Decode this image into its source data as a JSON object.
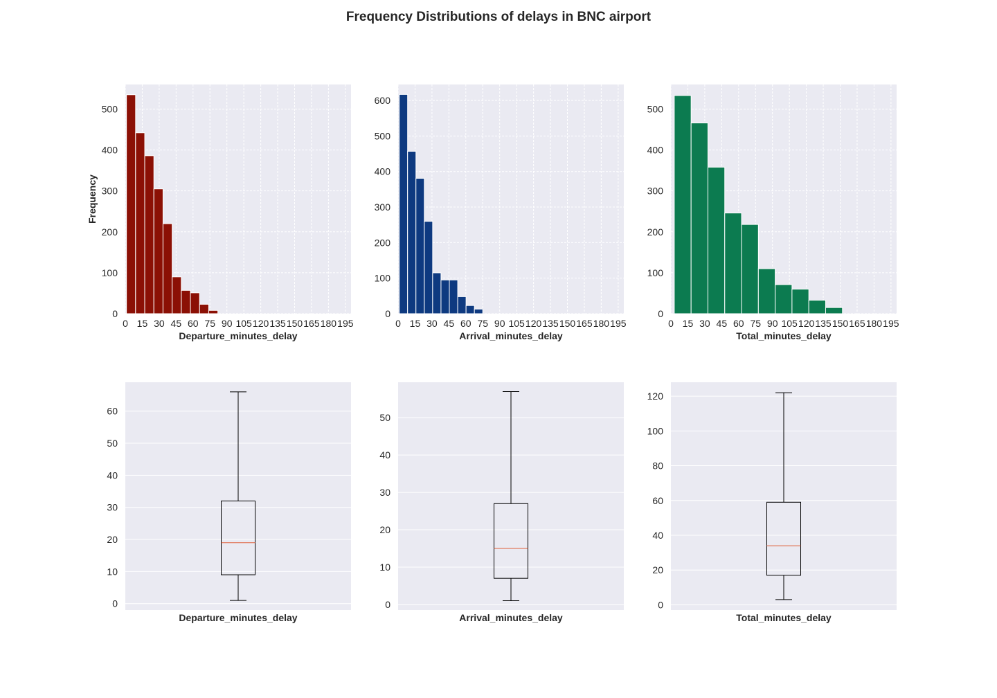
{
  "figure": {
    "title": "Frequency Distributions of delays in BNC airport"
  },
  "chart_data": [
    {
      "type": "bar",
      "subtype": "histogram",
      "color": "#8b1005",
      "xlabel": "Departure_minutes_delay",
      "ylabel": "Frequency",
      "xlim": [
        0,
        200
      ],
      "ylim": [
        0,
        560
      ],
      "xticks": [
        0,
        15,
        30,
        45,
        60,
        75,
        90,
        105,
        120,
        135,
        150,
        165,
        180,
        195
      ],
      "yticks": [
        0,
        100,
        200,
        300,
        400,
        500
      ],
      "bin_width": 8.1,
      "bin_starts": [
        1,
        9.1,
        17.2,
        25.3,
        33.4,
        41.5,
        49.6,
        57.7,
        65.8,
        73.9
      ],
      "values": [
        535,
        442,
        386,
        305,
        220,
        90,
        57,
        51,
        23,
        8
      ],
      "grid": true
    },
    {
      "type": "bar",
      "subtype": "histogram",
      "color": "#0e3a80",
      "xlabel": "Arrival_minutes_delay",
      "ylabel": "",
      "xlim": [
        0,
        200
      ],
      "ylim": [
        0,
        645
      ],
      "xticks": [
        0,
        15,
        30,
        45,
        60,
        75,
        90,
        105,
        120,
        135,
        150,
        165,
        180,
        195
      ],
      "yticks": [
        0,
        100,
        200,
        300,
        400,
        500,
        600
      ],
      "bin_width": 7.4,
      "bin_starts": [
        1,
        8.4,
        15.8,
        23.2,
        30.6,
        38,
        45.4,
        52.8,
        60.2,
        67.6
      ],
      "values": [
        617,
        457,
        381,
        260,
        115,
        95,
        95,
        48,
        23,
        13
      ],
      "grid": true
    },
    {
      "type": "bar",
      "subtype": "histogram",
      "color": "#0c7b50",
      "xlabel": "Total_minutes_delay",
      "ylabel": "",
      "xlim": [
        0,
        200
      ],
      "ylim": [
        0,
        560
      ],
      "xticks": [
        0,
        15,
        30,
        45,
        60,
        75,
        90,
        105,
        120,
        135,
        150,
        165,
        180,
        195
      ],
      "yticks": [
        0,
        100,
        200,
        300,
        400,
        500
      ],
      "bin_width": 14.9,
      "bin_starts": [
        3,
        17.9,
        32.8,
        47.7,
        62.6,
        77.5,
        92.4,
        107.3,
        122.2,
        137.1
      ],
      "values": [
        533,
        466,
        358,
        246,
        218,
        110,
        71,
        60,
        33,
        15
      ],
      "grid": true
    },
    {
      "type": "box",
      "xlabel": "Departure_minutes_delay",
      "ylim": [
        -2,
        69
      ],
      "yticks": [
        0,
        10,
        20,
        30,
        40,
        50,
        60
      ],
      "stats": {
        "whisker_low": 1,
        "q1": 9,
        "median": 19,
        "q3": 32,
        "whisker_high": 66
      },
      "median_color": "#e0603a",
      "grid": true
    },
    {
      "type": "box",
      "xlabel": "Arrival_minutes_delay",
      "ylim": [
        -1.5,
        59.5
      ],
      "yticks": [
        0,
        10,
        20,
        30,
        40,
        50
      ],
      "stats": {
        "whisker_low": 1,
        "q1": 7,
        "median": 15,
        "q3": 27,
        "whisker_high": 57
      },
      "median_color": "#e0603a",
      "grid": true
    },
    {
      "type": "box",
      "xlabel": "Total_minutes_delay",
      "ylim": [
        -3,
        128
      ],
      "yticks": [
        0,
        20,
        40,
        60,
        80,
        100,
        120
      ],
      "stats": {
        "whisker_low": 3,
        "q1": 17,
        "median": 34,
        "q3": 59,
        "whisker_high": 122
      },
      "median_color": "#e0603a",
      "grid": true
    }
  ]
}
